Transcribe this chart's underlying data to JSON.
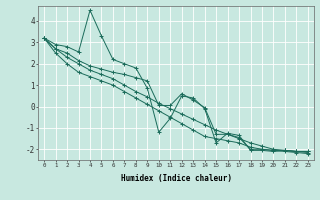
{
  "xlabel": "Humidex (Indice chaleur)",
  "ylabel": "",
  "background_color": "#c8e8e0",
  "grid_color": "#ffffff",
  "line_color": "#1a6b5a",
  "xlim": [
    -0.5,
    23.5
  ],
  "ylim": [
    -2.5,
    4.7
  ],
  "xticks": [
    0,
    1,
    2,
    3,
    4,
    5,
    6,
    7,
    8,
    9,
    10,
    11,
    12,
    13,
    14,
    15,
    16,
    17,
    18,
    19,
    20,
    21,
    22,
    23
  ],
  "yticks": [
    -2,
    -1,
    0,
    1,
    2,
    3,
    4
  ],
  "series": [
    [
      3.2,
      2.9,
      2.8,
      2.55,
      4.5,
      3.3,
      2.2,
      2.0,
      1.8,
      0.85,
      -1.2,
      -0.55,
      0.5,
      0.4,
      -0.1,
      -1.7,
      -1.25,
      -1.35,
      -2.05,
      -2.05,
      -2.1,
      -2.05,
      -2.1,
      -2.1
    ],
    [
      3.2,
      2.5,
      2.0,
      1.6,
      1.4,
      1.2,
      1.0,
      0.7,
      0.4,
      0.1,
      -0.2,
      -0.5,
      -0.8,
      -1.1,
      -1.4,
      -1.5,
      -1.6,
      -1.7,
      -1.9,
      -2.0,
      -2.05,
      -2.1,
      -2.15,
      -2.2
    ],
    [
      3.2,
      2.7,
      2.3,
      2.0,
      1.7,
      1.5,
      1.3,
      1.0,
      0.7,
      0.45,
      0.15,
      -0.1,
      -0.35,
      -0.6,
      -0.85,
      -1.1,
      -1.3,
      -1.5,
      -1.7,
      -1.85,
      -2.0,
      -2.05,
      -2.1,
      -2.15
    ],
    [
      3.2,
      2.7,
      2.5,
      2.15,
      1.9,
      1.75,
      1.6,
      1.5,
      1.35,
      1.2,
      0.05,
      0.05,
      0.6,
      0.3,
      -0.05,
      -1.3,
      -1.3,
      -1.45,
      -2.0,
      -2.0,
      -2.05,
      -2.05,
      -2.1,
      -2.1
    ]
  ]
}
